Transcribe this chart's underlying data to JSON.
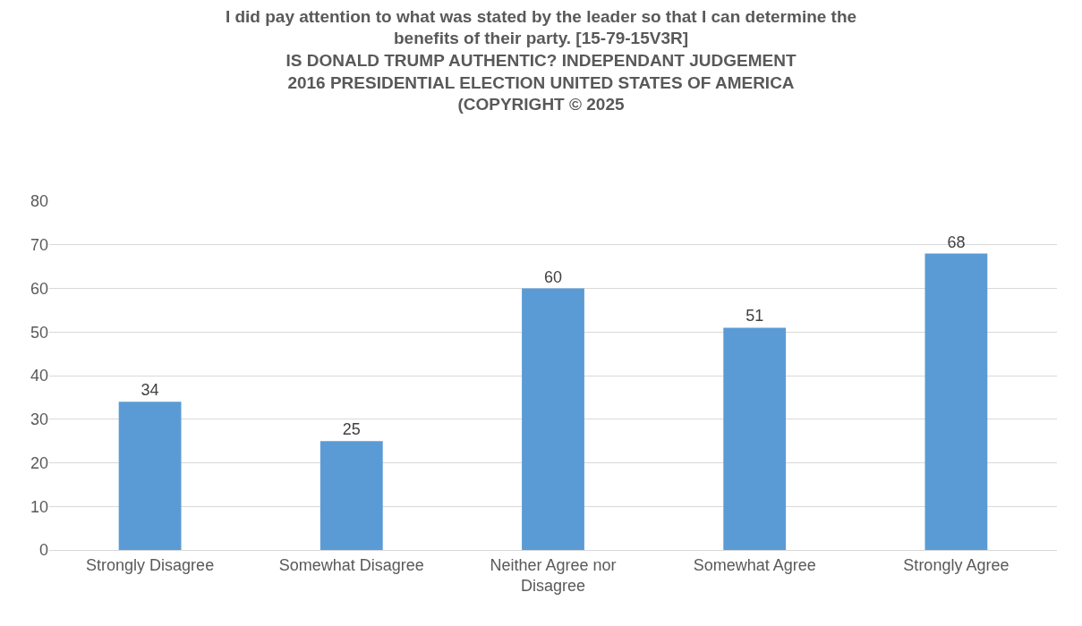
{
  "chart_data": {
    "type": "bar",
    "title": "I did pay attention to what was stated by the leader so that I can determine the benefits of their party. [15-79-15V3R]",
    "subtitle": "IS DONALD TRUMP AUTHENTIC? INDEPENDANT JUDGEMENT\n2016 PRESIDENTIAL ELECTION UNITED STATES OF AMERICA\n(COPYRIGHT © 2025",
    "categories": [
      "Strongly Disagree",
      "Somewhat Disagree",
      "Neither Agree nor Disagree",
      "Somewhat Agree",
      "Strongly Agree"
    ],
    "values": [
      34,
      25,
      60,
      51,
      68
    ],
    "color": "#5b9bd5",
    "ylim": [
      0,
      80
    ],
    "yticks": [
      0,
      10,
      20,
      30,
      40,
      50,
      60,
      70,
      80
    ],
    "grid": "y",
    "data_labels": true
  }
}
